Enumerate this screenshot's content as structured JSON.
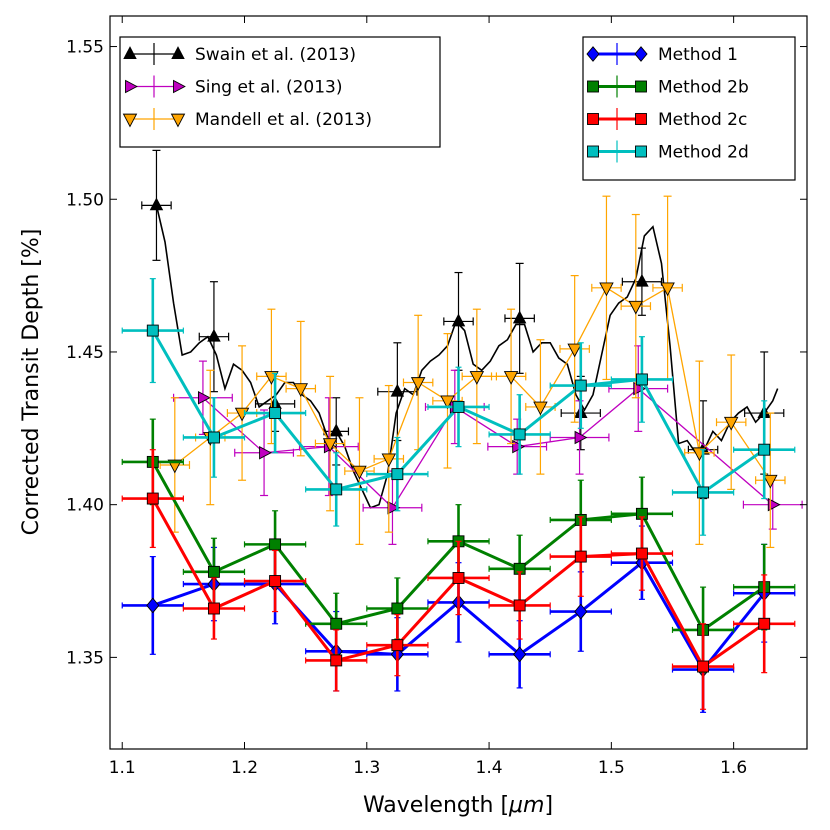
{
  "chart_data": {
    "type": "line",
    "xlabel": "Wavelength [",
    "xlabel_unit": "μm",
    "xlabel_close": "]",
    "ylabel": "Corrected Transit Depth [%]",
    "xlim": [
      1.09,
      1.66
    ],
    "ylim": [
      1.32,
      1.56
    ],
    "xticks": [
      1.1,
      1.2,
      1.3,
      1.4,
      1.5,
      1.6
    ],
    "xtick_labels": [
      "1.1",
      "1.2",
      "1.3",
      "1.4",
      "1.5",
      "1.6"
    ],
    "yticks": [
      1.35,
      1.4,
      1.45,
      1.5,
      1.55
    ],
    "ytick_labels": [
      "1.35",
      "1.40",
      "1.45",
      "1.50",
      "1.55"
    ],
    "grid": false,
    "legends": [
      {
        "placement": "top-left",
        "entries": [
          "Swain et al. (2013)",
          "Sing et al. (2013)",
          "Mandell et al. (2013)"
        ]
      },
      {
        "placement": "top-right",
        "entries": [
          "Method 1",
          "Method 2b",
          "Method 2c",
          "Method 2d"
        ]
      }
    ],
    "spectrum_line": {
      "color": "#000000",
      "x": [
        1.128,
        1.135,
        1.142,
        1.149,
        1.156,
        1.163,
        1.17,
        1.177,
        1.184,
        1.191,
        1.198,
        1.205,
        1.212,
        1.219,
        1.226,
        1.233,
        1.24,
        1.247,
        1.254,
        1.261,
        1.268,
        1.275,
        1.282,
        1.289,
        1.296,
        1.303,
        1.31,
        1.317,
        1.324,
        1.331,
        1.338,
        1.345,
        1.352,
        1.359,
        1.366,
        1.373,
        1.38,
        1.387,
        1.394,
        1.401,
        1.408,
        1.415,
        1.422,
        1.429,
        1.436,
        1.443,
        1.45,
        1.457,
        1.464,
        1.471,
        1.478,
        1.485,
        1.492,
        1.499,
        1.506,
        1.513,
        1.52,
        1.527,
        1.534,
        1.541,
        1.548,
        1.555,
        1.562,
        1.569,
        1.576,
        1.583,
        1.59,
        1.597,
        1.604,
        1.611,
        1.618,
        1.625,
        1.632,
        1.636
      ],
      "y": [
        1.498,
        1.486,
        1.466,
        1.449,
        1.45,
        1.453,
        1.455,
        1.449,
        1.438,
        1.446,
        1.444,
        1.44,
        1.432,
        1.434,
        1.436,
        1.44,
        1.44,
        1.436,
        1.434,
        1.43,
        1.422,
        1.424,
        1.419,
        1.411,
        1.405,
        1.399,
        1.4,
        1.41,
        1.43,
        1.438,
        1.436,
        1.444,
        1.447,
        1.449,
        1.452,
        1.46,
        1.457,
        1.446,
        1.444,
        1.447,
        1.452,
        1.454,
        1.459,
        1.459,
        1.45,
        1.453,
        1.453,
        1.448,
        1.446,
        1.436,
        1.431,
        1.436,
        1.449,
        1.462,
        1.466,
        1.468,
        1.474,
        1.488,
        1.491,
        1.479,
        1.452,
        1.42,
        1.421,
        1.417,
        1.418,
        1.424,
        1.421,
        1.427,
        1.43,
        1.432,
        1.427,
        1.43,
        1.434,
        1.438
      ]
    },
    "series": [
      {
        "name": "Swain et al. (2013)",
        "color": "#000000",
        "marker": "triangle-up",
        "linestyle": "none",
        "x": [
          1.128,
          1.175,
          1.225,
          1.275,
          1.325,
          1.375,
          1.425,
          1.475,
          1.525,
          1.575,
          1.625
        ],
        "y": [
          1.498,
          1.455,
          1.433,
          1.424,
          1.437,
          1.46,
          1.461,
          1.43,
          1.473,
          1.418,
          1.43
        ],
        "yerr": [
          0.018,
          0.018,
          0.009,
          0.011,
          0.016,
          0.016,
          0.018,
          0.012,
          0.011,
          0.016,
          0.02
        ],
        "xerr": [
          0.012,
          0.012,
          0.016,
          0.01,
          0.016,
          0.012,
          0.012,
          0.016,
          0.016,
          0.012,
          0.016
        ]
      },
      {
        "name": "Sing et al. (2013)",
        "color": "#bf00bf",
        "marker": "triangle-right",
        "linestyle": "solid",
        "x": [
          1.166,
          1.216,
          1.269,
          1.321,
          1.372,
          1.423,
          1.474,
          1.522,
          1.632
        ],
        "y": [
          1.435,
          1.417,
          1.419,
          1.399,
          1.432,
          1.419,
          1.422,
          1.438,
          1.4
        ],
        "yerr": [
          0.012,
          0.014,
          0.016,
          0.012,
          0.012,
          0.009,
          0.012,
          0.014,
          0.008
        ],
        "xerr": [
          0.024,
          0.024,
          0.024,
          0.024,
          0.024,
          0.024,
          0.024,
          0.024,
          0.024
        ]
      },
      {
        "name": "Mandell et al. (2013)",
        "color": "#ffa500",
        "marker": "triangle-down",
        "linestyle": "solid",
        "x": [
          1.143,
          1.172,
          1.198,
          1.222,
          1.246,
          1.27,
          1.294,
          1.318,
          1.342,
          1.366,
          1.39,
          1.418,
          1.442,
          1.47,
          1.496,
          1.52,
          1.546,
          1.572,
          1.598,
          1.63
        ],
        "y": [
          1.413,
          1.422,
          1.43,
          1.442,
          1.438,
          1.42,
          1.411,
          1.415,
          1.44,
          1.434,
          1.442,
          1.442,
          1.432,
          1.451,
          1.471,
          1.465,
          1.471,
          1.417,
          1.427,
          1.408
        ],
        "yerr": [
          0.022,
          0.022,
          0.022,
          0.022,
          0.022,
          0.022,
          0.024,
          0.024,
          0.022,
          0.022,
          0.022,
          0.022,
          0.022,
          0.024,
          0.03,
          0.03,
          0.03,
          0.03,
          0.022,
          0.022
        ],
        "xerr": [
          0.012,
          0.012,
          0.012,
          0.012,
          0.012,
          0.012,
          0.012,
          0.012,
          0.012,
          0.012,
          0.012,
          0.012,
          0.012,
          0.012,
          0.012,
          0.012,
          0.012,
          0.012,
          0.012,
          0.012
        ]
      },
      {
        "name": "Method 1",
        "color": "#0000ff",
        "marker": "diamond",
        "linestyle": "solid",
        "x": [
          1.125,
          1.175,
          1.225,
          1.275,
          1.325,
          1.375,
          1.425,
          1.475,
          1.525,
          1.575,
          1.625
        ],
        "y": [
          1.367,
          1.374,
          1.374,
          1.352,
          1.351,
          1.368,
          1.351,
          1.365,
          1.381,
          1.346,
          1.371
        ],
        "yerr": [
          0.016,
          0.012,
          0.013,
          0.013,
          0.012,
          0.013,
          0.011,
          0.013,
          0.012,
          0.014,
          0.016
        ],
        "xerr": [
          0.025,
          0.025,
          0.025,
          0.025,
          0.025,
          0.025,
          0.025,
          0.025,
          0.025,
          0.025,
          0.025
        ]
      },
      {
        "name": "Method 2b",
        "color": "#008000",
        "marker": "square",
        "linestyle": "solid",
        "x": [
          1.125,
          1.175,
          1.225,
          1.275,
          1.325,
          1.375,
          1.425,
          1.475,
          1.525,
          1.575,
          1.625
        ],
        "y": [
          1.414,
          1.378,
          1.387,
          1.361,
          1.366,
          1.388,
          1.379,
          1.395,
          1.397,
          1.359,
          1.373
        ],
        "yerr": [
          0.014,
          0.011,
          0.011,
          0.01,
          0.01,
          0.012,
          0.011,
          0.013,
          0.012,
          0.014,
          0.014
        ],
        "xerr": [
          0.025,
          0.025,
          0.025,
          0.025,
          0.025,
          0.025,
          0.025,
          0.025,
          0.025,
          0.025,
          0.025
        ]
      },
      {
        "name": "Method 2c",
        "color": "#ff0000",
        "marker": "square",
        "linestyle": "solid",
        "x": [
          1.125,
          1.175,
          1.225,
          1.275,
          1.325,
          1.375,
          1.425,
          1.475,
          1.525,
          1.575,
          1.625
        ],
        "y": [
          1.402,
          1.366,
          1.375,
          1.349,
          1.354,
          1.376,
          1.367,
          1.383,
          1.384,
          1.347,
          1.361
        ],
        "yerr": [
          0.016,
          0.01,
          0.01,
          0.01,
          0.01,
          0.012,
          0.011,
          0.013,
          0.012,
          0.014,
          0.016
        ],
        "xerr": [
          0.025,
          0.025,
          0.025,
          0.025,
          0.025,
          0.025,
          0.025,
          0.025,
          0.025,
          0.025,
          0.025
        ]
      },
      {
        "name": "Method 2d",
        "color": "#00bfbf",
        "marker": "square",
        "linestyle": "solid",
        "x": [
          1.125,
          1.175,
          1.225,
          1.275,
          1.325,
          1.375,
          1.425,
          1.475,
          1.525,
          1.575,
          1.625
        ],
        "y": [
          1.457,
          1.422,
          1.43,
          1.405,
          1.41,
          1.432,
          1.423,
          1.439,
          1.441,
          1.404,
          1.418
        ],
        "yerr": [
          0.017,
          0.013,
          0.013,
          0.012,
          0.012,
          0.013,
          0.013,
          0.014,
          0.014,
          0.014,
          0.016
        ],
        "xerr": [
          0.025,
          0.025,
          0.025,
          0.025,
          0.025,
          0.025,
          0.025,
          0.025,
          0.025,
          0.025,
          0.025
        ]
      }
    ]
  }
}
